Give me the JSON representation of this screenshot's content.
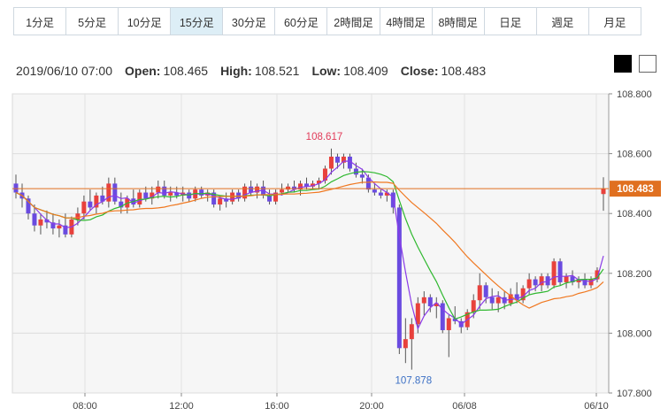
{
  "tabs": [
    {
      "label": "1分足",
      "active": false
    },
    {
      "label": "5分足",
      "active": false
    },
    {
      "label": "10分足",
      "active": false
    },
    {
      "label": "15分足",
      "active": true
    },
    {
      "label": "30分足",
      "active": false
    },
    {
      "label": "60分足",
      "active": false
    },
    {
      "label": "2時間足",
      "active": false
    },
    {
      "label": "4時間足",
      "active": false
    },
    {
      "label": "8時間足",
      "active": false
    },
    {
      "label": "日足",
      "active": false
    },
    {
      "label": "週足",
      "active": false
    },
    {
      "label": "月足",
      "active": false
    }
  ],
  "ohlc": {
    "datetime": "2019/06/10 07:00",
    "open_label": "Open:",
    "open": "108.465",
    "high_label": "High:",
    "high": "108.521",
    "low_label": "Low:",
    "low": "108.409",
    "close_label": "Close:",
    "close": "108.483"
  },
  "theme": {
    "dark": "#000000",
    "light": "#ffffff",
    "up": "#e8413c",
    "down": "#6a4be0",
    "ma_short": "#8a3be8",
    "ma_mid": "#2fb82f",
    "ma_long": "#f07820",
    "price_line": "#e07020"
  },
  "chart_data": {
    "type": "candlestick",
    "y_ticks": [
      "108.800",
      "108.600",
      "108.400",
      "108.200",
      "108.000",
      "107.800"
    ],
    "ylim": [
      107.8,
      108.8
    ],
    "x_ticks": [
      "08:00",
      "12:00",
      "16:00",
      "20:00",
      "06/08",
      "06/10"
    ],
    "current_price": "108.483",
    "high_annotation": "108.617",
    "low_annotation": "107.878",
    "candles": [
      [
        108.5,
        108.53,
        108.45,
        108.47
      ],
      [
        108.47,
        108.5,
        108.42,
        108.45
      ],
      [
        108.45,
        108.46,
        108.38,
        108.4
      ],
      [
        108.4,
        108.43,
        108.34,
        108.36
      ],
      [
        108.36,
        108.4,
        108.33,
        108.38
      ],
      [
        108.38,
        108.41,
        108.35,
        108.37
      ],
      [
        108.37,
        108.4,
        108.33,
        108.35
      ],
      [
        108.35,
        108.38,
        108.32,
        108.36
      ],
      [
        108.36,
        108.4,
        108.32,
        108.33
      ],
      [
        108.33,
        108.39,
        108.32,
        108.38
      ],
      [
        108.38,
        108.42,
        108.36,
        108.4
      ],
      [
        108.4,
        108.46,
        108.38,
        108.44
      ],
      [
        108.44,
        108.48,
        108.41,
        108.42
      ],
      [
        108.42,
        108.47,
        108.4,
        108.46
      ],
      [
        108.46,
        108.49,
        108.43,
        108.44
      ],
      [
        108.44,
        108.52,
        108.42,
        108.5
      ],
      [
        108.5,
        108.52,
        108.43,
        108.44
      ],
      [
        108.44,
        108.47,
        108.4,
        108.42
      ],
      [
        108.42,
        108.46,
        108.4,
        108.45
      ],
      [
        108.45,
        108.48,
        108.42,
        108.43
      ],
      [
        108.43,
        108.48,
        108.42,
        108.47
      ],
      [
        108.47,
        108.49,
        108.44,
        108.45
      ],
      [
        108.45,
        108.49,
        108.43,
        108.47
      ],
      [
        108.47,
        108.51,
        108.45,
        108.49
      ],
      [
        108.49,
        108.51,
        108.45,
        108.46
      ],
      [
        108.46,
        108.49,
        108.44,
        108.47
      ],
      [
        108.47,
        108.49,
        108.45,
        108.46
      ],
      [
        108.46,
        108.49,
        108.44,
        108.47
      ],
      [
        108.47,
        108.48,
        108.44,
        108.45
      ],
      [
        108.45,
        108.49,
        108.44,
        108.48
      ],
      [
        108.48,
        108.49,
        108.45,
        108.46
      ],
      [
        108.46,
        108.48,
        108.44,
        108.47
      ],
      [
        108.47,
        108.48,
        108.42,
        108.43
      ],
      [
        108.43,
        108.46,
        108.41,
        108.45
      ],
      [
        108.45,
        108.47,
        108.42,
        108.44
      ],
      [
        108.44,
        108.48,
        108.43,
        108.47
      ],
      [
        108.47,
        108.48,
        108.44,
        108.45
      ],
      [
        108.45,
        108.5,
        108.44,
        108.49
      ],
      [
        108.49,
        108.51,
        108.46,
        108.47
      ],
      [
        108.47,
        108.5,
        108.45,
        108.49
      ],
      [
        108.49,
        108.51,
        108.45,
        108.46
      ],
      [
        108.46,
        108.48,
        108.43,
        108.44
      ],
      [
        108.44,
        108.48,
        108.43,
        108.47
      ],
      [
        108.47,
        108.5,
        108.46,
        108.48
      ],
      [
        108.48,
        108.5,
        108.47,
        108.49
      ],
      [
        108.49,
        108.51,
        108.47,
        108.48
      ],
      [
        108.48,
        108.51,
        108.46,
        108.5
      ],
      [
        108.5,
        108.52,
        108.48,
        108.49
      ],
      [
        108.49,
        108.51,
        108.48,
        108.5
      ],
      [
        108.5,
        108.52,
        108.48,
        108.51
      ],
      [
        108.51,
        108.56,
        108.5,
        108.55
      ],
      [
        108.55,
        108.617,
        108.53,
        108.59
      ],
      [
        108.59,
        108.6,
        108.55,
        108.57
      ],
      [
        108.57,
        108.6,
        108.55,
        108.59
      ],
      [
        108.59,
        108.6,
        108.54,
        108.55
      ],
      [
        108.55,
        108.57,
        108.52,
        108.53
      ],
      [
        108.53,
        108.55,
        108.5,
        108.52
      ],
      [
        108.52,
        108.53,
        108.47,
        108.48
      ],
      [
        108.48,
        108.5,
        108.46,
        108.47
      ],
      [
        108.47,
        108.48,
        108.45,
        108.46
      ],
      [
        108.46,
        108.48,
        108.44,
        108.47
      ],
      [
        108.47,
        108.48,
        108.4,
        108.42
      ],
      [
        108.42,
        108.43,
        107.93,
        107.95
      ],
      [
        107.95,
        108.05,
        107.9,
        107.98
      ],
      [
        107.98,
        108.05,
        107.878,
        108.03
      ],
      [
        108.03,
        108.12,
        108.0,
        108.1
      ],
      [
        108.1,
        108.14,
        108.06,
        108.12
      ],
      [
        108.12,
        108.13,
        108.07,
        108.09
      ],
      [
        108.09,
        108.12,
        108.05,
        108.1
      ],
      [
        108.1,
        108.11,
        108.0,
        108.01
      ],
      [
        108.01,
        108.06,
        107.92,
        108.05
      ],
      [
        108.05,
        108.09,
        108.03,
        108.04
      ],
      [
        108.04,
        108.05,
        108.0,
        108.02
      ],
      [
        108.02,
        108.08,
        108.01,
        108.07
      ],
      [
        108.07,
        108.13,
        108.05,
        108.11
      ],
      [
        108.11,
        108.2,
        108.08,
        108.16
      ],
      [
        108.16,
        108.17,
        108.1,
        108.12
      ],
      [
        108.12,
        108.15,
        108.08,
        108.1
      ],
      [
        108.1,
        108.14,
        108.07,
        108.12
      ],
      [
        108.12,
        108.14,
        108.08,
        108.1
      ],
      [
        108.1,
        108.15,
        108.09,
        108.13
      ],
      [
        108.13,
        108.17,
        108.1,
        108.11
      ],
      [
        108.11,
        108.16,
        108.1,
        108.15
      ],
      [
        108.15,
        108.2,
        108.13,
        108.18
      ],
      [
        108.18,
        108.19,
        108.14,
        108.16
      ],
      [
        108.16,
        108.2,
        108.14,
        108.19
      ],
      [
        108.19,
        108.2,
        108.15,
        108.16
      ],
      [
        108.16,
        108.25,
        108.15,
        108.24
      ],
      [
        108.24,
        108.25,
        108.16,
        108.17
      ],
      [
        108.17,
        108.2,
        108.15,
        108.19
      ],
      [
        108.19,
        108.21,
        108.16,
        108.17
      ],
      [
        108.17,
        108.19,
        108.15,
        108.18
      ],
      [
        108.18,
        108.2,
        108.15,
        108.16
      ],
      [
        108.16,
        108.19,
        108.15,
        108.18
      ],
      [
        108.18,
        108.22,
        108.17,
        108.21
      ],
      [
        108.465,
        108.521,
        108.409,
        108.483
      ]
    ]
  }
}
